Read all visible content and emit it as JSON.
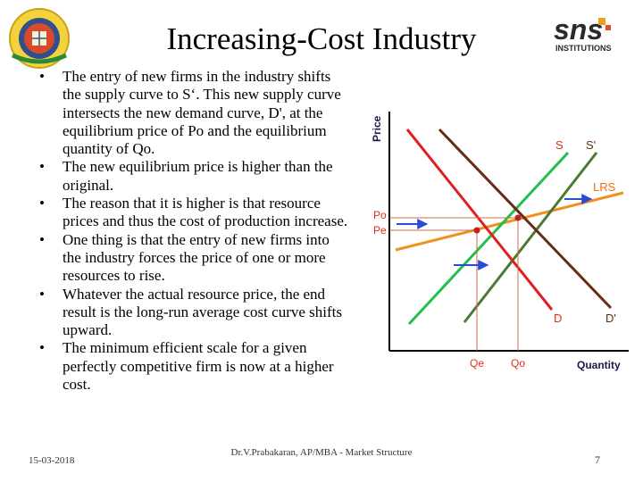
{
  "slide": {
    "title": "Increasing-Cost Industry",
    "bullets": [
      "The entry of new firms in the  industry shifts the supply curve to S‘. This new supply curve intersects the new demand curve, D', at the equilibrium price of Po and the equilibrium quantity of Qo.",
      "The new equilibrium price is higher than the original.",
      "The reason that it is higher is that resource prices and thus the cost of production increase.",
      "One thing is that the entry of new firms into the industry forces the price of one or more resources to rise.",
      "Whatever the actual resource price, the end result is the long-run average cost curve shifts upward.",
      "The minimum efficient scale for a given perfectly competitive firm is now at a higher cost."
    ],
    "bullet_symbol": "•",
    "footer": {
      "date": "15-03-2018",
      "author": "Dr.V.Prabakaran, AP/MBA - Market Structure",
      "page": "7"
    },
    "logo_right_text": "sns",
    "logo_right_subtext": "INSTITUTIONS"
  },
  "graph": {
    "y_axis_label": "Price",
    "x_axis_label": "Quantity",
    "curves": {
      "s": "S",
      "s_prime": "S'",
      "lrs": "LRS",
      "d": "D",
      "d_prime": "D'"
    },
    "price_labels": {
      "po": "Po",
      "pe": "Pe"
    },
    "quantity_labels": {
      "qe": "Qe",
      "qo": "Qo"
    },
    "colors": {
      "supply": "#22c04a",
      "supply_new": "#4a7a32",
      "lrs": "#f09020",
      "demand": "#e02020",
      "demand_new": "#6a2a1a",
      "labels": "#e03010",
      "axis": "#000000",
      "arrows": "#2a4ad8",
      "equilibrium": "#c02020"
    }
  }
}
